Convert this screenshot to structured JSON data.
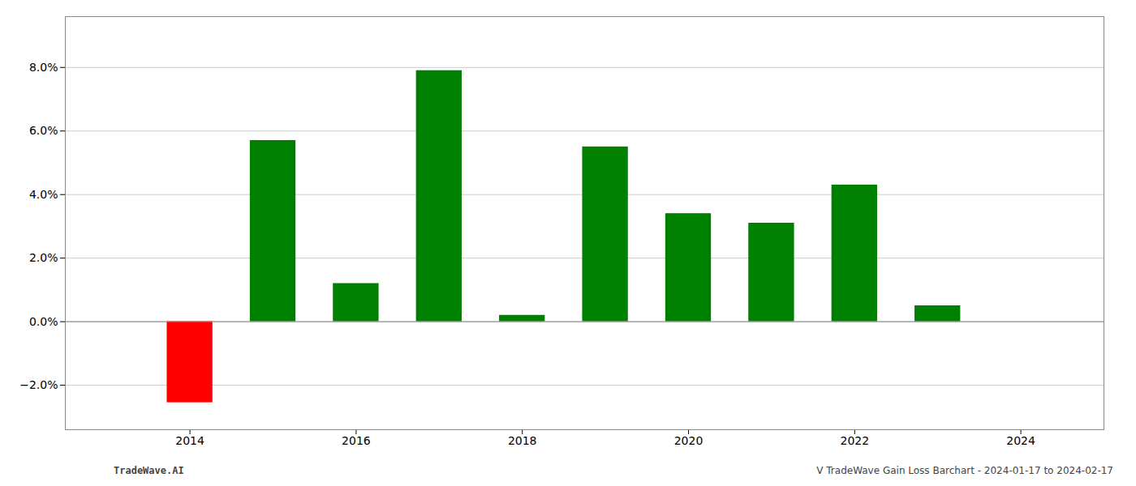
{
  "chart_data": {
    "type": "bar",
    "x": [
      2014,
      2015,
      2016,
      2017,
      2018,
      2019,
      2020,
      2021,
      2022,
      2023
    ],
    "values": [
      -0.0255,
      0.057,
      0.012,
      0.079,
      0.002,
      0.055,
      0.034,
      0.031,
      0.043,
      0.005
    ],
    "colors": [
      "#ff0000",
      "#008000",
      "#008000",
      "#008000",
      "#008000",
      "#008000",
      "#008000",
      "#008000",
      "#008000",
      "#008000"
    ],
    "xlim": [
      2012.5,
      2025.0
    ],
    "ylim": [
      -0.034,
      0.096
    ],
    "xticks": [
      2014,
      2016,
      2018,
      2020,
      2022,
      2024
    ],
    "yticks": [
      {
        "value": -0.02,
        "label": "−2.0%"
      },
      {
        "value": 0.0,
        "label": "0.0%"
      },
      {
        "value": 0.02,
        "label": "2.0%"
      },
      {
        "value": 0.04,
        "label": "4.0%"
      },
      {
        "value": 0.06,
        "label": "6.0%"
      },
      {
        "value": 0.08,
        "label": "8.0%"
      }
    ],
    "grid": true,
    "annotations": [
      "TradeWave.AI",
      "V TradeWave Gain Loss Barchart - 2024-01-17 to 2024-02-17"
    ]
  }
}
